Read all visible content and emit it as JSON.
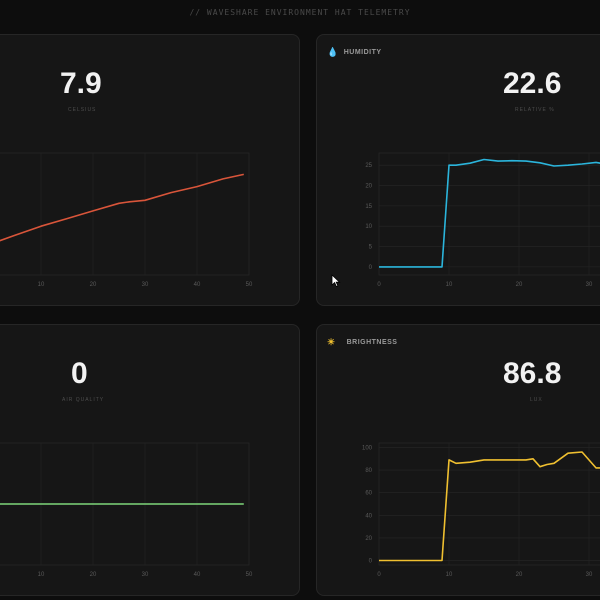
{
  "header": {
    "title": "// WAVESHARE ENVIRONMENT HAT TELEMETRY"
  },
  "cards": {
    "temperature": {
      "title": "",
      "icon": "",
      "value": "7.9",
      "unit": "CELSIUS"
    },
    "humidity": {
      "title": "HUMIDITY",
      "icon": "water-drop-icon",
      "value": "22.6",
      "unit": "RELATIVE %"
    },
    "air": {
      "title": "",
      "icon": "",
      "value": "0",
      "unit": "AIR QUALITY"
    },
    "brightness": {
      "title": "BRIGHTNESS",
      "icon": "sun-icon",
      "value": "86.8",
      "unit": "LUX"
    }
  },
  "colors": {
    "temperature": "#d9553a",
    "humidity": "#2bb5dc",
    "air": "#7ed67a",
    "brightness": "#f0c030",
    "grid": "#262626",
    "tick": "#5a5a5a"
  },
  "chart_data": [
    {
      "type": "line",
      "name": "temperature",
      "x": [
        0,
        5,
        10,
        15,
        20,
        25,
        27,
        30,
        35,
        40,
        45,
        49
      ],
      "values": [
        0,
        0.3,
        0.6,
        0.85,
        1.1,
        1.35,
        1.4,
        1.45,
        1.7,
        1.9,
        2.15,
        2.3
      ],
      "xticks": [
        0,
        10,
        20,
        30,
        40,
        50
      ],
      "yticks": [],
      "xlim": [
        0,
        50
      ],
      "ylim": [
        -1,
        3
      ]
    },
    {
      "type": "line",
      "name": "humidity",
      "x": [
        0,
        9,
        10,
        11,
        13,
        15,
        17,
        19,
        21,
        23,
        25,
        27,
        29,
        31,
        33,
        35,
        37
      ],
      "values": [
        0,
        0,
        25,
        25,
        25.5,
        26.4,
        26,
        26.1,
        26,
        25.6,
        24.8,
        25,
        25.3,
        25.7,
        25.1,
        24.8,
        24.5
      ],
      "xticks": [
        0,
        10,
        20,
        30
      ],
      "yticks": [
        0,
        5,
        10,
        15,
        20,
        25
      ],
      "xlim": [
        0,
        34
      ],
      "ylim": [
        -2,
        28
      ]
    },
    {
      "type": "line",
      "name": "air quality",
      "x": [
        0,
        49
      ],
      "values": [
        0,
        0
      ],
      "xticks": [
        0,
        10,
        20,
        30,
        40,
        50
      ],
      "yticks": [],
      "xlim": [
        0,
        50
      ],
      "ylim": [
        -1,
        1
      ]
    },
    {
      "type": "line",
      "name": "brightness",
      "x": [
        0,
        9,
        10,
        11,
        13,
        15,
        17,
        19,
        21,
        22,
        23,
        24,
        25,
        27,
        29,
        31,
        32,
        34,
        36,
        37
      ],
      "values": [
        0,
        0,
        89,
        86,
        87,
        89,
        89,
        89,
        89,
        90,
        83,
        85,
        86,
        95,
        96,
        82,
        82,
        82,
        94,
        95
      ],
      "xticks": [
        0,
        10,
        20,
        30
      ],
      "yticks": [
        0,
        20,
        40,
        60,
        80,
        100
      ],
      "xlim": [
        0,
        34
      ],
      "ylim": [
        -4,
        104
      ]
    }
  ]
}
